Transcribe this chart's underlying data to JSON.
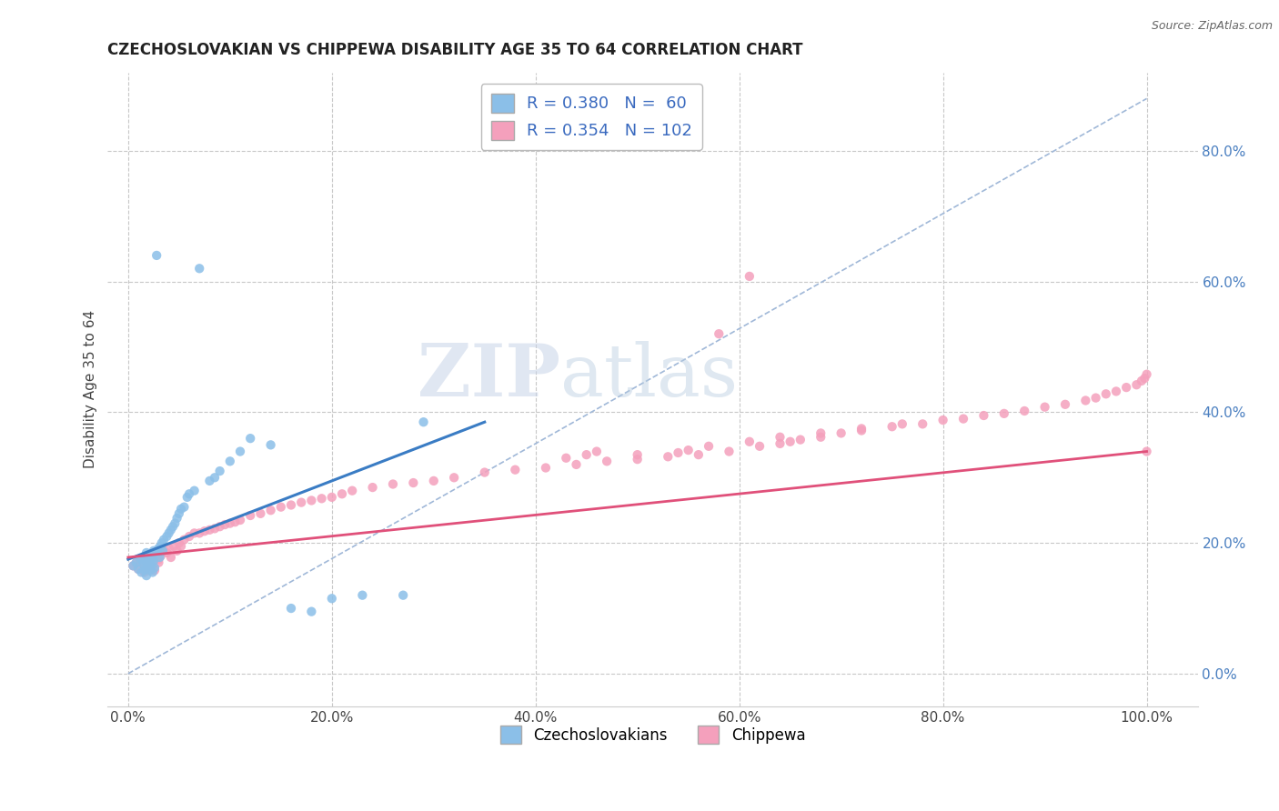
{
  "title": "CZECHOSLOVAKIAN VS CHIPPEWA DISABILITY AGE 35 TO 64 CORRELATION CHART",
  "source": "Source: ZipAtlas.com",
  "ylabel": "Disability Age 35 to 64",
  "xlim": [
    -0.02,
    1.05
  ],
  "ylim": [
    -0.05,
    0.92
  ],
  "xticks": [
    0.0,
    0.2,
    0.4,
    0.6,
    0.8,
    1.0
  ],
  "xticklabels": [
    "0.0%",
    "20.0%",
    "40.0%",
    "60.0%",
    "80.0%",
    "100.0%"
  ],
  "yticks": [
    0.0,
    0.2,
    0.4,
    0.6,
    0.8
  ],
  "yticklabels": [
    "0.0%",
    "20.0%",
    "40.0%",
    "60.0%",
    "80.0%"
  ],
  "legend_r1": "R = 0.380",
  "legend_n1": "N =  60",
  "legend_r2": "R = 0.354",
  "legend_n2": "N = 102",
  "color_czech": "#8bbfe8",
  "color_chippewa": "#f4a0bc",
  "color_trendline_czech": "#3a7cc4",
  "color_trendline_chippewa": "#e0507a",
  "color_dashed_ref": "#a0b8d8",
  "color_grid": "#c8c8c8",
  "watermark_zip": "ZIP",
  "watermark_atlas": "atlas",
  "czech_x": [
    0.005,
    0.008,
    0.01,
    0.012,
    0.013,
    0.015,
    0.015,
    0.016,
    0.017,
    0.018,
    0.018,
    0.018,
    0.019,
    0.019,
    0.02,
    0.02,
    0.021,
    0.022,
    0.022,
    0.023,
    0.023,
    0.024,
    0.024,
    0.025,
    0.025,
    0.026,
    0.028,
    0.028,
    0.03,
    0.031,
    0.032,
    0.033,
    0.034,
    0.035,
    0.038,
    0.04,
    0.042,
    0.044,
    0.046,
    0.048,
    0.05,
    0.052,
    0.055,
    0.058,
    0.06,
    0.065,
    0.07,
    0.08,
    0.085,
    0.09,
    0.1,
    0.11,
    0.12,
    0.14,
    0.16,
    0.18,
    0.2,
    0.23,
    0.27,
    0.29
  ],
  "czech_y": [
    0.165,
    0.17,
    0.16,
    0.175,
    0.155,
    0.168,
    0.172,
    0.158,
    0.178,
    0.162,
    0.185,
    0.15,
    0.168,
    0.175,
    0.16,
    0.17,
    0.172,
    0.178,
    0.158,
    0.18,
    0.165,
    0.175,
    0.155,
    0.188,
    0.172,
    0.162,
    0.185,
    0.64,
    0.192,
    0.178,
    0.195,
    0.2,
    0.188,
    0.205,
    0.21,
    0.215,
    0.22,
    0.225,
    0.23,
    0.238,
    0.245,
    0.252,
    0.255,
    0.27,
    0.275,
    0.28,
    0.62,
    0.295,
    0.3,
    0.31,
    0.325,
    0.34,
    0.36,
    0.35,
    0.1,
    0.095,
    0.115,
    0.12,
    0.12,
    0.385
  ],
  "chippewa_x": [
    0.005,
    0.008,
    0.01,
    0.012,
    0.015,
    0.016,
    0.018,
    0.018,
    0.02,
    0.022,
    0.024,
    0.025,
    0.026,
    0.028,
    0.03,
    0.03,
    0.032,
    0.035,
    0.038,
    0.04,
    0.042,
    0.045,
    0.048,
    0.05,
    0.052,
    0.055,
    0.06,
    0.065,
    0.07,
    0.075,
    0.08,
    0.085,
    0.09,
    0.095,
    0.1,
    0.105,
    0.11,
    0.12,
    0.13,
    0.14,
    0.15,
    0.16,
    0.17,
    0.18,
    0.19,
    0.2,
    0.21,
    0.22,
    0.24,
    0.26,
    0.28,
    0.3,
    0.32,
    0.35,
    0.38,
    0.41,
    0.44,
    0.47,
    0.5,
    0.53,
    0.56,
    0.59,
    0.61,
    0.62,
    0.64,
    0.65,
    0.66,
    0.68,
    0.7,
    0.72,
    0.75,
    0.78,
    0.8,
    0.82,
    0.84,
    0.86,
    0.88,
    0.9,
    0.92,
    0.94,
    0.95,
    0.96,
    0.97,
    0.98,
    0.99,
    0.995,
    0.998,
    1.0,
    1.0,
    0.43,
    0.45,
    0.46,
    0.5,
    0.54,
    0.55,
    0.57,
    0.58,
    0.61,
    0.64,
    0.68,
    0.72,
    0.76
  ],
  "chippewa_y": [
    0.165,
    0.17,
    0.16,
    0.172,
    0.168,
    0.155,
    0.175,
    0.162,
    0.178,
    0.18,
    0.165,
    0.175,
    0.158,
    0.185,
    0.17,
    0.175,
    0.18,
    0.188,
    0.185,
    0.192,
    0.178,
    0.195,
    0.188,
    0.2,
    0.195,
    0.205,
    0.21,
    0.215,
    0.215,
    0.218,
    0.22,
    0.222,
    0.225,
    0.228,
    0.23,
    0.232,
    0.235,
    0.242,
    0.245,
    0.25,
    0.255,
    0.258,
    0.262,
    0.265,
    0.268,
    0.27,
    0.275,
    0.28,
    0.285,
    0.29,
    0.292,
    0.295,
    0.3,
    0.308,
    0.312,
    0.315,
    0.32,
    0.325,
    0.328,
    0.332,
    0.335,
    0.34,
    0.608,
    0.348,
    0.352,
    0.355,
    0.358,
    0.362,
    0.368,
    0.372,
    0.378,
    0.382,
    0.388,
    0.39,
    0.395,
    0.398,
    0.402,
    0.408,
    0.412,
    0.418,
    0.422,
    0.428,
    0.432,
    0.438,
    0.442,
    0.448,
    0.452,
    0.458,
    0.34,
    0.33,
    0.335,
    0.34,
    0.335,
    0.338,
    0.342,
    0.348,
    0.52,
    0.355,
    0.362,
    0.368,
    0.375,
    0.382
  ],
  "trendline_czech_x0": 0.0,
  "trendline_czech_x1": 0.35,
  "trendline_czech_y0": 0.175,
  "trendline_czech_y1": 0.385,
  "trendline_chippewa_x0": 0.0,
  "trendline_chippewa_x1": 1.0,
  "trendline_chippewa_y0": 0.178,
  "trendline_chippewa_y1": 0.34,
  "ref_line_x": [
    0.0,
    1.0
  ],
  "ref_line_y": [
    0.0,
    0.88
  ]
}
